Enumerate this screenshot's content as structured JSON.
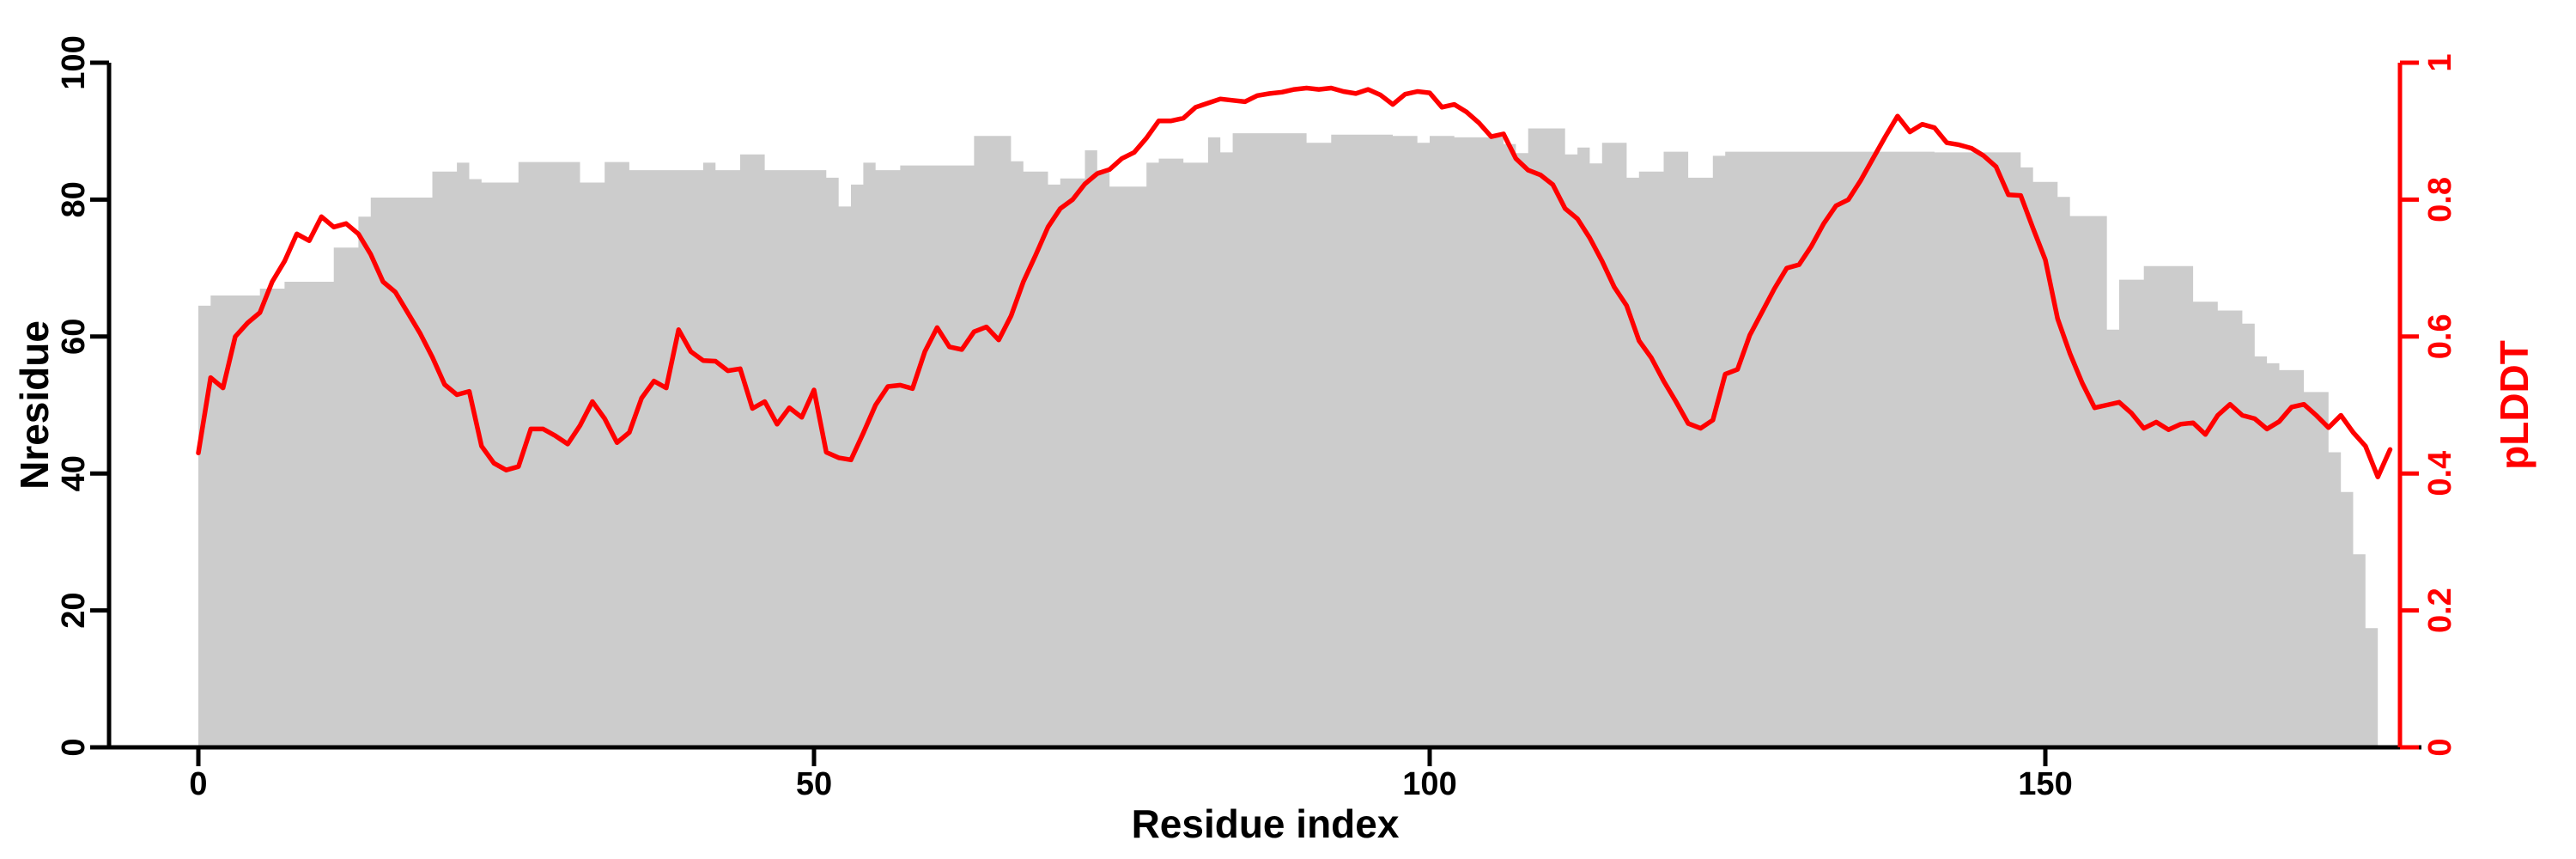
{
  "figure": {
    "background": "#ffffff",
    "plot_type": "dual-axis residue profile"
  },
  "chart_data": {
    "type": "composite",
    "grid": false,
    "legend": false,
    "x_axis": {
      "label": "Residue index",
      "ticks": [
        0,
        50,
        100,
        150
      ],
      "range": [
        0,
        179
      ]
    },
    "y_left": {
      "label": "Nresidue",
      "ticks": [
        0,
        20,
        40,
        60,
        80,
        100
      ],
      "range": [
        0,
        100
      ],
      "color": "#000000"
    },
    "y_right": {
      "label": "pLDDT",
      "ticks": [
        "0",
        "0.2",
        "0.4",
        "0.6",
        "0.8",
        "1"
      ],
      "range": [
        0,
        1
      ],
      "color": "#ff0000"
    },
    "series": [
      {
        "name": "Nresidue",
        "type": "step-area",
        "axis": "left",
        "color": "#cccccc",
        "x_start": 0,
        "x_step": 1,
        "values": [
          64.5,
          66,
          66,
          66,
          66,
          67,
          67,
          68,
          68,
          68,
          68,
          73,
          73,
          77.5,
          80.3,
          80.3,
          80.3,
          80.3,
          80.3,
          84.1,
          84.1,
          85.4,
          83,
          82.5,
          82.5,
          82.5,
          85.5,
          85.5,
          85.5,
          85.5,
          85.5,
          82.5,
          82.5,
          85.5,
          85.5,
          84.3,
          84.3,
          84.3,
          84.3,
          84.3,
          84.3,
          85.4,
          84.3,
          84.3,
          86.6,
          86.6,
          84.3,
          84.3,
          84.3,
          84.3,
          84.3,
          83.2,
          79,
          82.2,
          85.4,
          84.3,
          84.3,
          85,
          85,
          85,
          85,
          85,
          85,
          89.3,
          89.3,
          89.3,
          85.6,
          84.1,
          84.1,
          82.2,
          83.1,
          83.1,
          87.2,
          84.3,
          81.9,
          81.9,
          81.9,
          85.4,
          86,
          86,
          85.4,
          85.4,
          89.1,
          86.9,
          89.7,
          89.7,
          89.7,
          89.7,
          89.7,
          89.7,
          88.3,
          88.3,
          89.5,
          89.5,
          89.5,
          89.5,
          89.5,
          89.3,
          89.3,
          88.3,
          89.3,
          89.3,
          89.1,
          89.1,
          89.1,
          89.1,
          88.1,
          86.8,
          90.4,
          90.4,
          90.4,
          86.6,
          87.6,
          85.3,
          88.3,
          88.3,
          83.2,
          84.1,
          84.1,
          87,
          87,
          83.2,
          83.2,
          86.4,
          87,
          87,
          87,
          87,
          87,
          87,
          87,
          87,
          87,
          87,
          87,
          87,
          87,
          87,
          87,
          87,
          87,
          86.9,
          86.9,
          86.9,
          86.9,
          86.9,
          86.9,
          86.9,
          84.7,
          82.6,
          82.6,
          80.4,
          77.6,
          77.6,
          77.6,
          61,
          68.3,
          68.3,
          70.3,
          70.3,
          70.3,
          70.3,
          65.1,
          65.1,
          63.8,
          63.8,
          61.9,
          57.1,
          56.1,
          55.1,
          55.1,
          51.9,
          51.9,
          43.1,
          37.3,
          28.2,
          17.4
        ]
      },
      {
        "name": "pLDDT",
        "type": "line",
        "axis": "right",
        "color": "#ff0000",
        "x_start": 0,
        "x_step": 1,
        "values": [
          0.43,
          0.54,
          0.525,
          0.6,
          0.62,
          0.635,
          0.68,
          0.71,
          0.75,
          0.74,
          0.775,
          0.76,
          0.765,
          0.75,
          0.72,
          0.68,
          0.665,
          0.635,
          0.605,
          0.57,
          0.53,
          0.515,
          0.52,
          0.44,
          0.415,
          0.405,
          0.41,
          0.465,
          0.465,
          0.455,
          0.443,
          0.47,
          0.505,
          0.48,
          0.445,
          0.46,
          0.51,
          0.535,
          0.525,
          0.61,
          0.578,
          0.565,
          0.564,
          0.55,
          0.553,
          0.495,
          0.505,
          0.472,
          0.496,
          0.482,
          0.522,
          0.431,
          0.423,
          0.42,
          0.459,
          0.5,
          0.527,
          0.529,
          0.524,
          0.578,
          0.613,
          0.585,
          0.581,
          0.607,
          0.614,
          0.595,
          0.63,
          0.68,
          0.719,
          0.76,
          0.787,
          0.8,
          0.823,
          0.838,
          0.844,
          0.86,
          0.869,
          0.89,
          0.915,
          0.915,
          0.919,
          0.935,
          0.941,
          0.947,
          0.945,
          0.943,
          0.952,
          0.955,
          0.957,
          0.961,
          0.963,
          0.961,
          0.963,
          0.958,
          0.955,
          0.961,
          0.953,
          0.939,
          0.954,
          0.958,
          0.956,
          0.935,
          0.939,
          0.928,
          0.912,
          0.892,
          0.896,
          0.86,
          0.843,
          0.836,
          0.822,
          0.787,
          0.772,
          0.744,
          0.71,
          0.672,
          0.645,
          0.594,
          0.569,
          0.535,
          0.505,
          0.473,
          0.466,
          0.478,
          0.545,
          0.552,
          0.602,
          0.636,
          0.67,
          0.7,
          0.705,
          0.732,
          0.765,
          0.791,
          0.8,
          0.828,
          0.86,
          0.892,
          0.922,
          0.899,
          0.91,
          0.905,
          0.883,
          0.88,
          0.875,
          0.864,
          0.848,
          0.807,
          0.806,
          0.758,
          0.712,
          0.626,
          0.575,
          0.532,
          0.496,
          0.5,
          0.504,
          0.488,
          0.466,
          0.475,
          0.464,
          0.472,
          0.474,
          0.457,
          0.485,
          0.501,
          0.485,
          0.48,
          0.465,
          0.476,
          0.497,
          0.501,
          0.485,
          0.467,
          0.485,
          0.46,
          0.44,
          0.395,
          0.435
        ]
      }
    ]
  }
}
